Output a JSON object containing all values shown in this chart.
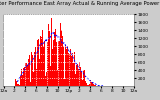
{
  "title": "Solar PV/Inverter Performance East Array Actual & Running Average Power Output",
  "bg_color": "#cccccc",
  "plot_bg": "#ffffff",
  "bar_color": "#ff0000",
  "line_color": "#0000ff",
  "grid_color": "#aaaaaa",
  "ylim": [
    0,
    1800
  ],
  "yticks": [
    200,
    400,
    600,
    800,
    1000,
    1200,
    1400,
    1600,
    1800
  ],
  "n_bars": 288,
  "title_fontsize": 3.8,
  "axis_fontsize": 3.2,
  "legend_fontsize": 3.0
}
